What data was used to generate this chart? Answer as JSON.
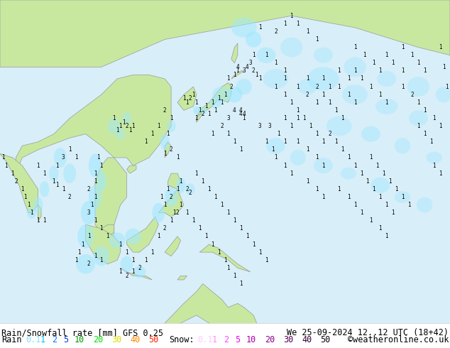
{
  "title_left": "Rain/Snowfall rate [mm] GFS 0.25",
  "title_right": "We 25-09-2024 12..12 UTC (18+42)",
  "copyright": "©weatheronline.co.uk",
  "legend_rain_label": "Rain",
  "legend_snow_label": "Snow:",
  "rain_values": [
    "0.1",
    "1",
    "2",
    "5",
    "10",
    "20",
    "30",
    "40",
    "50"
  ],
  "rain_colors": [
    "#88ddff",
    "#00bbff",
    "#0077ff",
    "#0033cc",
    "#009900",
    "#00dd00",
    "#dddd00",
    "#ff8800",
    "#ff2200"
  ],
  "snow_values": [
    "0.1",
    "1",
    "2",
    "5",
    "10",
    "20",
    "30",
    "40",
    "50"
  ],
  "snow_colors": [
    "#ffccff",
    "#ff88ff",
    "#ff44ff",
    "#ee00ee",
    "#aa00aa",
    "#880088",
    "#550055",
    "#330033",
    "#110011"
  ],
  "bg_color": "#ffffff",
  "land_color": "#c8e8a0",
  "sea_color": "#d8eef8",
  "gray_land_color": "#c0c0c0",
  "title_fontsize": 8.5,
  "legend_fontsize": 8.5,
  "figsize": [
    6.34,
    4.9
  ],
  "dpi": 100,
  "lon_min": 68,
  "lon_max": 210,
  "lat_min": -20,
  "lat_max": 62
}
